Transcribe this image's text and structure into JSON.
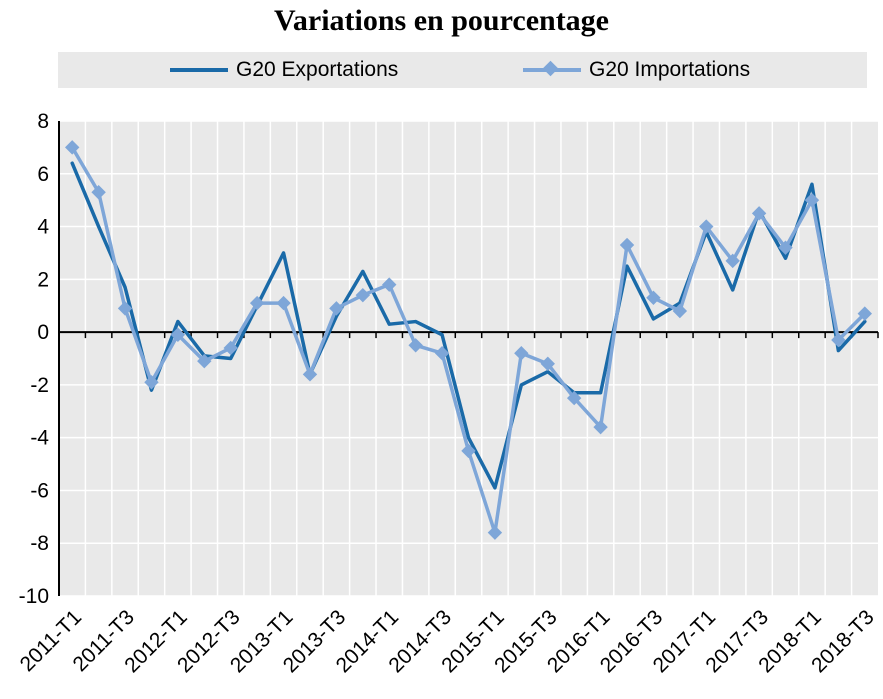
{
  "chart_data": {
    "type": "line",
    "title": "Variations en pourcentage",
    "xlabel": "",
    "ylabel": "",
    "ylim": [
      -10,
      8
    ],
    "yticks": [
      8,
      6,
      4,
      2,
      0,
      -2,
      -4,
      -6,
      -8,
      -10
    ],
    "grid": true,
    "legend_position": "top",
    "categories": [
      "2011-T1",
      "2011-T2",
      "2011-T3",
      "2011-T4",
      "2012-T1",
      "2012-T2",
      "2012-T3",
      "2012-T4",
      "2013-T1",
      "2013-T2",
      "2013-T3",
      "2013-T4",
      "2014-T1",
      "2014-T2",
      "2014-T3",
      "2014-T4",
      "2015-T1",
      "2015-T2",
      "2015-T3",
      "2015-T4",
      "2016-T1",
      "2016-T2",
      "2016-T3",
      "2016-T4",
      "2017-T1",
      "2017-T2",
      "2017-T3",
      "2017-T4",
      "2018-T1",
      "2018-T2",
      "2018-T3"
    ],
    "x_tick_labels": [
      "2011-T1",
      "2011-T3",
      "2012-T1",
      "2012-T3",
      "2013-T1",
      "2013-T3",
      "2014-T1",
      "2014-T3",
      "2015-T1",
      "2015-T3",
      "2016-T1",
      "2016-T3",
      "2017-T1",
      "2017-T3",
      "2018-T1",
      "2018-T3"
    ],
    "series": [
      {
        "name": "G20 Exportations",
        "color": "#1a6aa8",
        "marker": "none",
        "values": [
          6.4,
          4.0,
          1.7,
          -2.2,
          0.4,
          -0.9,
          -1.0,
          1.0,
          3.0,
          -1.6,
          0.6,
          2.3,
          0.3,
          0.4,
          -0.1,
          -4.0,
          -5.9,
          -2.0,
          -1.5,
          -2.3,
          -2.3,
          2.5,
          0.5,
          1.1,
          3.8,
          1.6,
          4.6,
          2.8,
          5.6,
          -0.7,
          0.4
        ]
      },
      {
        "name": "G20 Importations",
        "color": "#7ea6d8",
        "marker": "diamond",
        "values": [
          7.0,
          5.3,
          0.9,
          -1.9,
          -0.1,
          -1.1,
          -0.6,
          1.1,
          1.1,
          -1.6,
          0.9,
          1.4,
          1.8,
          -0.5,
          -0.8,
          -4.5,
          -7.6,
          -0.8,
          -1.2,
          -2.5,
          -3.6,
          3.3,
          1.3,
          0.8,
          4.0,
          2.7,
          4.5,
          3.2,
          5.0,
          -0.3,
          0.7
        ]
      }
    ]
  }
}
